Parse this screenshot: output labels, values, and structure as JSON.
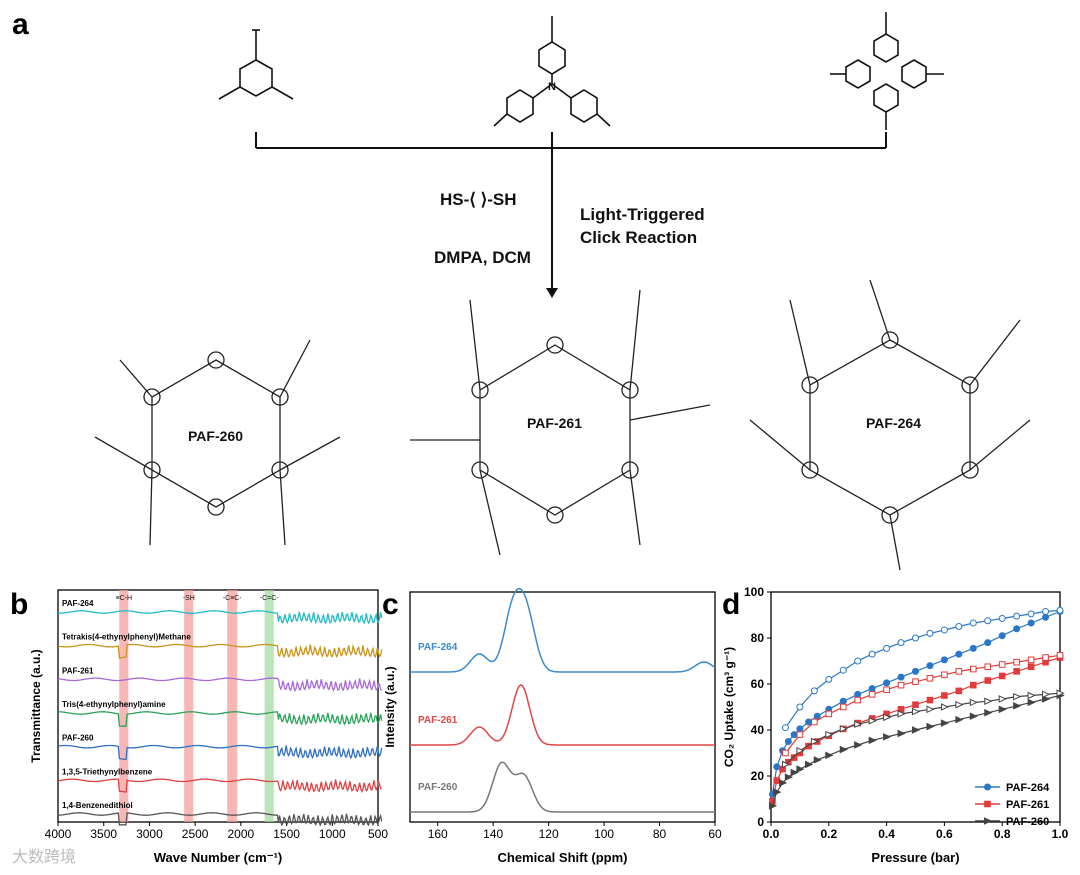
{
  "panels": {
    "a": "a",
    "b": "b",
    "c": "c",
    "d": "d"
  },
  "reaction": {
    "thiol": "HS-⟨ ⟩-SH",
    "conditions": "DMPA, DCM",
    "light": "Light-Triggered",
    "click": "Click Reaction"
  },
  "frameworks": [
    "PAF-260",
    "PAF-261",
    "PAF-264"
  ],
  "ir": {
    "xlabel": "Wave Number (cm⁻¹)",
    "ylabel": "Transmittance (a.u.)",
    "xticks": [
      4000,
      3500,
      3000,
      2500,
      2000,
      1500,
      1000,
      500
    ],
    "bands": [
      "≡C-H",
      "-SH",
      "-C≡C-",
      "-C=C-"
    ],
    "traces": [
      {
        "name": "PAF-264",
        "color": "#23bcc5"
      },
      {
        "name": "Tetrakis(4-ethynylphenyl)Methane",
        "color": "#c8951a"
      },
      {
        "name": "PAF-261",
        "color": "#a66ad6"
      },
      {
        "name": "Tris(4-ethynylphenyl)amine",
        "color": "#2aa35b"
      },
      {
        "name": "PAF-260",
        "color": "#2f6fc6"
      },
      {
        "name": "1,3,5-Triethynylbenzene",
        "color": "#e04040"
      },
      {
        "name": "1,4-Benzenedithiol",
        "color": "#555555"
      }
    ]
  },
  "nmr": {
    "xlabel": "Chemical Shift (ppm)",
    "ylabel": "Intensity (a.u.)",
    "xticks": [
      160,
      140,
      120,
      100,
      80,
      60
    ],
    "traces": [
      {
        "name": "PAF-264",
        "color": "#3a8ad0"
      },
      {
        "name": "PAF-261",
        "color": "#e04646"
      },
      {
        "name": "PAF-260",
        "color": "#777777"
      }
    ]
  },
  "chart_data": {
    "type": "scatter",
    "title": "",
    "xlabel": "Pressure (bar)",
    "ylabel": "CO₂ Uptake (cm³ g⁻¹)",
    "xlim": [
      0,
      1.0
    ],
    "ylim": [
      0,
      100
    ],
    "xticks": [
      "0.0",
      "0.2",
      "0.4",
      "0.6",
      "0.8",
      "1.0"
    ],
    "yticks": [
      "0",
      "20",
      "40",
      "60",
      "80",
      "100"
    ],
    "legend_position": "bottom-right",
    "series": [
      {
        "name": "PAF-264",
        "color": "#2a76c9",
        "marker": "circle",
        "adsorption": {
          "x": [
            0.005,
            0.02,
            0.04,
            0.06,
            0.08,
            0.1,
            0.13,
            0.16,
            0.2,
            0.25,
            0.3,
            0.35,
            0.4,
            0.45,
            0.5,
            0.55,
            0.6,
            0.65,
            0.7,
            0.75,
            0.8,
            0.85,
            0.9,
            0.95,
            1.0
          ],
          "y": [
            12,
            24,
            31,
            35,
            38,
            40.5,
            43.5,
            46,
            49,
            52.5,
            55.5,
            58,
            60.5,
            63,
            65.5,
            68,
            70.5,
            73,
            75.5,
            78,
            81,
            84,
            86.5,
            89,
            91.5
          ]
        },
        "desorption": {
          "x": [
            0.05,
            0.1,
            0.15,
            0.2,
            0.25,
            0.3,
            0.35,
            0.4,
            0.45,
            0.5,
            0.55,
            0.6,
            0.65,
            0.7,
            0.75,
            0.8,
            0.85,
            0.9,
            0.95,
            1.0
          ],
          "y": [
            41,
            50,
            57,
            62,
            66,
            70,
            73,
            75.5,
            78,
            80,
            82,
            83.5,
            85,
            86.5,
            87.5,
            88.5,
            89.5,
            90.5,
            91.5,
            92
          ]
        }
      },
      {
        "name": "PAF-261",
        "color": "#e23b3b",
        "marker": "square",
        "adsorption": {
          "x": [
            0.005,
            0.02,
            0.04,
            0.06,
            0.08,
            0.1,
            0.13,
            0.16,
            0.2,
            0.25,
            0.3,
            0.35,
            0.4,
            0.45,
            0.5,
            0.55,
            0.6,
            0.65,
            0.7,
            0.75,
            0.8,
            0.85,
            0.9,
            0.95,
            1.0
          ],
          "y": [
            9,
            18,
            23,
            26,
            28,
            30,
            33,
            35,
            37.5,
            40.5,
            43,
            45,
            47,
            49,
            51,
            53,
            55,
            57,
            59.5,
            61.5,
            63.5,
            65.5,
            67.5,
            69.5,
            71.5
          ]
        },
        "desorption": {
          "x": [
            0.05,
            0.1,
            0.15,
            0.2,
            0.25,
            0.3,
            0.35,
            0.4,
            0.45,
            0.5,
            0.55,
            0.6,
            0.65,
            0.7,
            0.75,
            0.8,
            0.85,
            0.9,
            0.95,
            1.0
          ],
          "y": [
            30,
            38,
            43.5,
            47,
            50,
            53,
            55.5,
            57.5,
            59.5,
            61,
            62.5,
            64,
            65.5,
            66.5,
            67.5,
            68.5,
            69.5,
            70.5,
            71.5,
            72.5
          ]
        }
      },
      {
        "name": "PAF-260",
        "color": "#444444",
        "marker": "triangle",
        "adsorption": {
          "x": [
            0.005,
            0.02,
            0.04,
            0.06,
            0.08,
            0.1,
            0.13,
            0.16,
            0.2,
            0.25,
            0.3,
            0.35,
            0.4,
            0.45,
            0.5,
            0.55,
            0.6,
            0.65,
            0.7,
            0.75,
            0.8,
            0.85,
            0.9,
            0.95,
            1.0
          ],
          "y": [
            7,
            13,
            17,
            19.5,
            21.5,
            23,
            25,
            27,
            29,
            31.5,
            33.5,
            35.5,
            37,
            38.5,
            40,
            41.5,
            43,
            44.5,
            46,
            47.5,
            49,
            50.5,
            52,
            53.5,
            55
          ]
        },
        "desorption": {
          "x": [
            0.05,
            0.1,
            0.15,
            0.2,
            0.25,
            0.3,
            0.35,
            0.4,
            0.45,
            0.5,
            0.55,
            0.6,
            0.65,
            0.7,
            0.75,
            0.8,
            0.85,
            0.9,
            0.95,
            1.0
          ],
          "y": [
            25,
            31,
            35,
            38,
            40.5,
            42.5,
            44,
            45.5,
            47,
            48,
            49,
            50,
            51,
            52,
            52.5,
            53.5,
            54.5,
            55,
            55.5,
            56
          ]
        }
      }
    ]
  },
  "watermark": "大数跨境"
}
